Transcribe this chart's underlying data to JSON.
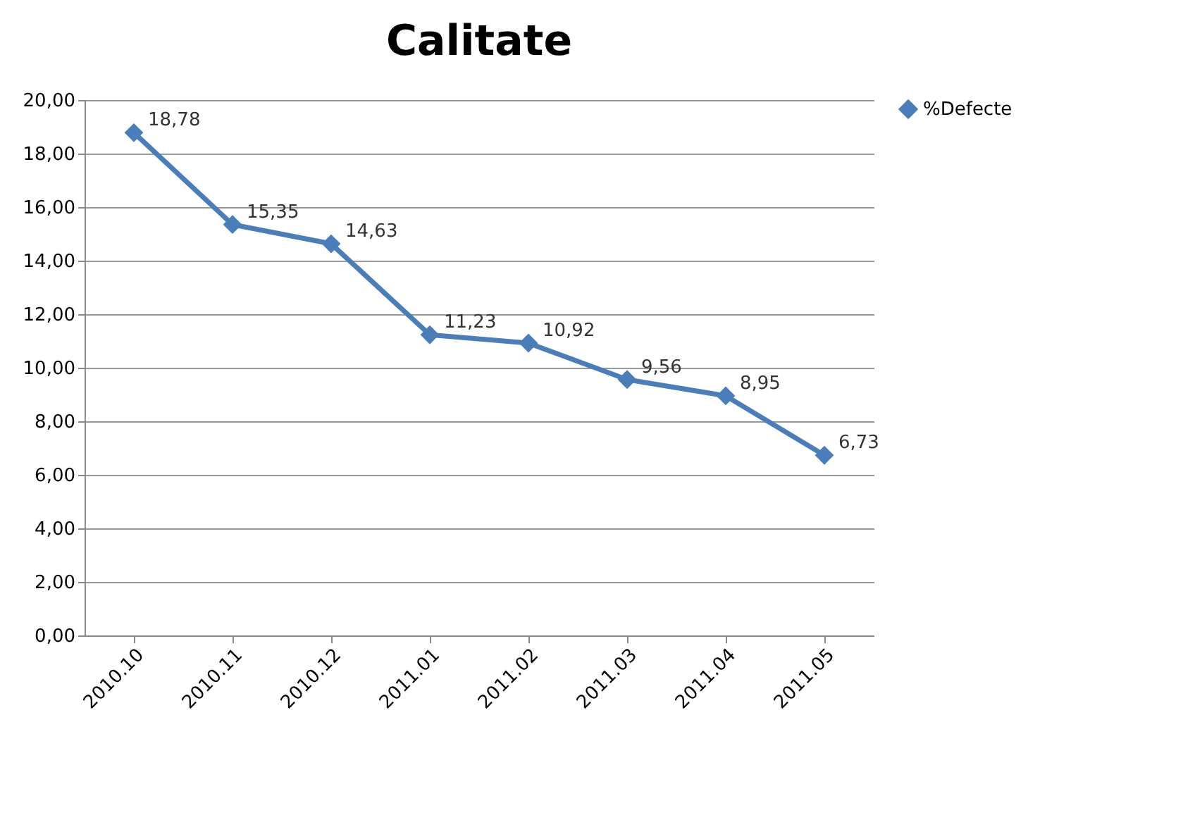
{
  "chart_data": {
    "type": "line",
    "title": "Calitate",
    "categories": [
      "2010.10",
      "2010.11",
      "2010.12",
      "2011.01",
      "2011.02",
      "2011.03",
      "2011.04",
      "2011.05"
    ],
    "series": [
      {
        "name": "%Defecte",
        "color": "#4a7ebb",
        "values": [
          18.78,
          15.35,
          14.63,
          11.23,
          10.92,
          9.56,
          8.95,
          6.73
        ],
        "value_labels": [
          "18,78",
          "15,35",
          "14,63",
          "11,23",
          "10,92",
          "9,56",
          "8,95",
          "6,73"
        ]
      }
    ],
    "ylim": [
      0,
      20
    ],
    "yticks": [
      {
        "value": 0,
        "label": "0,00"
      },
      {
        "value": 2,
        "label": "2,00"
      },
      {
        "value": 4,
        "label": "4,00"
      },
      {
        "value": 6,
        "label": "6,00"
      },
      {
        "value": 8,
        "label": "8,00"
      },
      {
        "value": 10,
        "label": "10,00"
      },
      {
        "value": 12,
        "label": "12,00"
      },
      {
        "value": 14,
        "label": "14,00"
      },
      {
        "value": 16,
        "label": "16,00"
      },
      {
        "value": 18,
        "label": "18,00"
      },
      {
        "value": 20,
        "label": "20,00"
      }
    ],
    "grid": "y",
    "legend": "right",
    "marker": "diamond",
    "line_style": "solid"
  }
}
